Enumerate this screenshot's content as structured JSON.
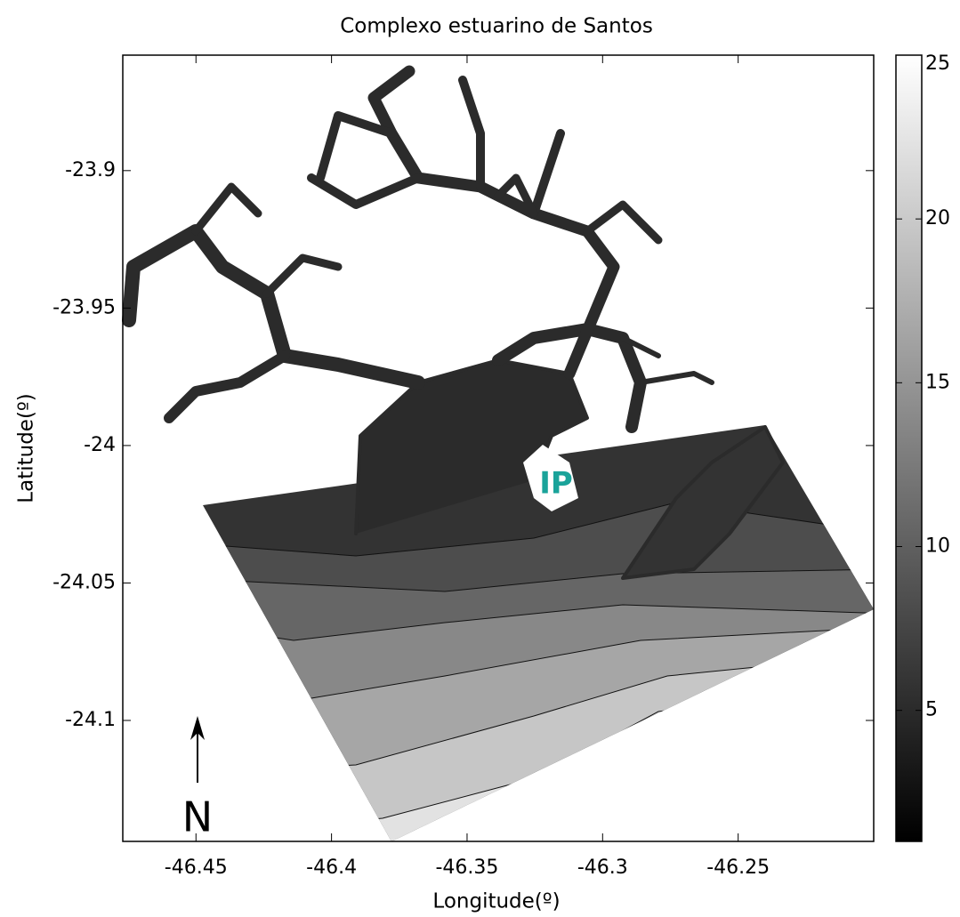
{
  "chart_data": {
    "type": "contour",
    "title": "Complexo estuarino de Santos",
    "x_label": "Longitude(º)",
    "y_label": "Latitude(º)",
    "xlim": [
      -46.477,
      -46.2
    ],
    "xticks": [
      -46.45,
      -46.4,
      -46.35,
      -46.3,
      -46.25
    ],
    "ylim": [
      -24.144,
      -23.858
    ],
    "yticks": [
      -23.9,
      -23.95,
      -24,
      -24.05,
      -24.1
    ],
    "colorbar": {
      "clim": [
        1,
        25
      ],
      "ticks": [
        5,
        10,
        15,
        20,
        25
      ],
      "colors": [
        "#000000",
        "#ffffff"
      ]
    },
    "annotations": [
      {
        "text": "IP",
        "color": "#1aa39a"
      },
      {
        "text": "N"
      }
    ]
  }
}
